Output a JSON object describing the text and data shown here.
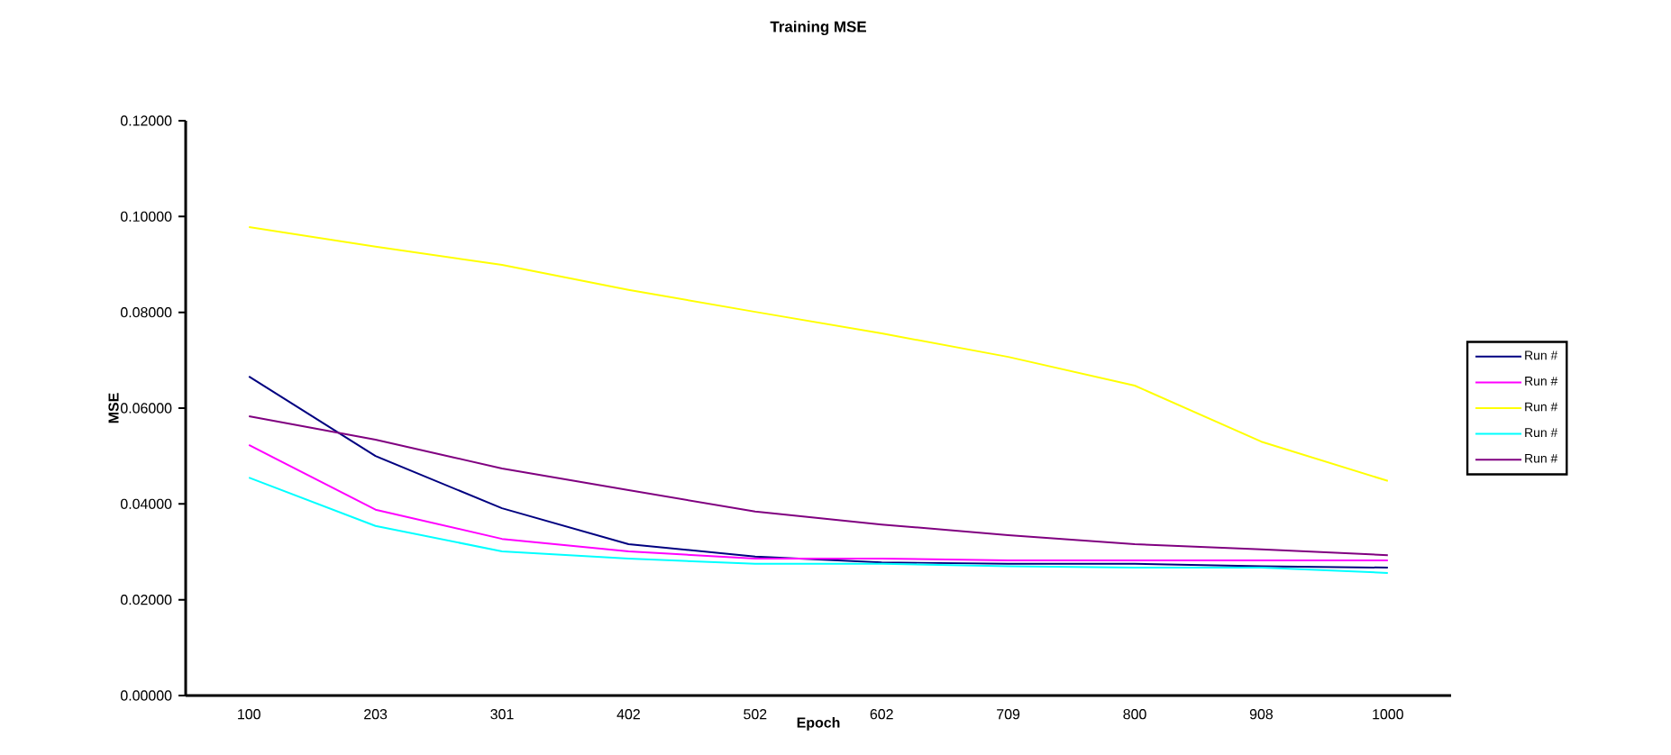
{
  "chart_data": {
    "type": "line",
    "title": "Training MSE",
    "xlabel": "Epoch",
    "ylabel": "MSE",
    "categories": [
      "100",
      "203",
      "301",
      "402",
      "502",
      "602",
      "709",
      "800",
      "908",
      "1000"
    ],
    "series": [
      {
        "name": "Run #",
        "color": "#000080",
        "values": [
          0.0666,
          0.05,
          0.0391,
          0.0316,
          0.029,
          0.0278,
          0.0275,
          0.0275,
          0.027,
          0.0267
        ]
      },
      {
        "name": "Run #",
        "color": "#ff00ff",
        "values": [
          0.0523,
          0.0388,
          0.0327,
          0.0301,
          0.0286,
          0.0286,
          0.0282,
          0.0282,
          0.0282,
          0.0282
        ]
      },
      {
        "name": "Run #",
        "color": "#ffff00",
        "values": [
          0.0978,
          0.0937,
          0.0899,
          0.0847,
          0.0801,
          0.0756,
          0.0707,
          0.0647,
          0.053,
          0.0448
        ]
      },
      {
        "name": "Run #",
        "color": "#00ffff",
        "values": [
          0.0455,
          0.0354,
          0.0301,
          0.0286,
          0.0275,
          0.0275,
          0.027,
          0.0267,
          0.0267,
          0.0256
        ]
      },
      {
        "name": "Run #",
        "color": "#800080",
        "values": [
          0.0583,
          0.0534,
          0.0474,
          0.0429,
          0.0384,
          0.0357,
          0.0335,
          0.0316,
          0.0305,
          0.0293
        ]
      }
    ],
    "ylim": [
      0,
      0.12
    ],
    "yticks": [
      {
        "value": 0,
        "label": "0.00000"
      },
      {
        "value": 0.02,
        "label": "0.02000"
      },
      {
        "value": 0.04,
        "label": "0.04000"
      },
      {
        "value": 0.06,
        "label": "0.06000"
      },
      {
        "value": 0.08,
        "label": "0.08000"
      },
      {
        "value": 0.1,
        "label": "0.10000"
      },
      {
        "value": 0.12,
        "label": "0.12000"
      }
    ],
    "legend": "right",
    "grid": false,
    "marker": "none",
    "line_style": "solid"
  }
}
